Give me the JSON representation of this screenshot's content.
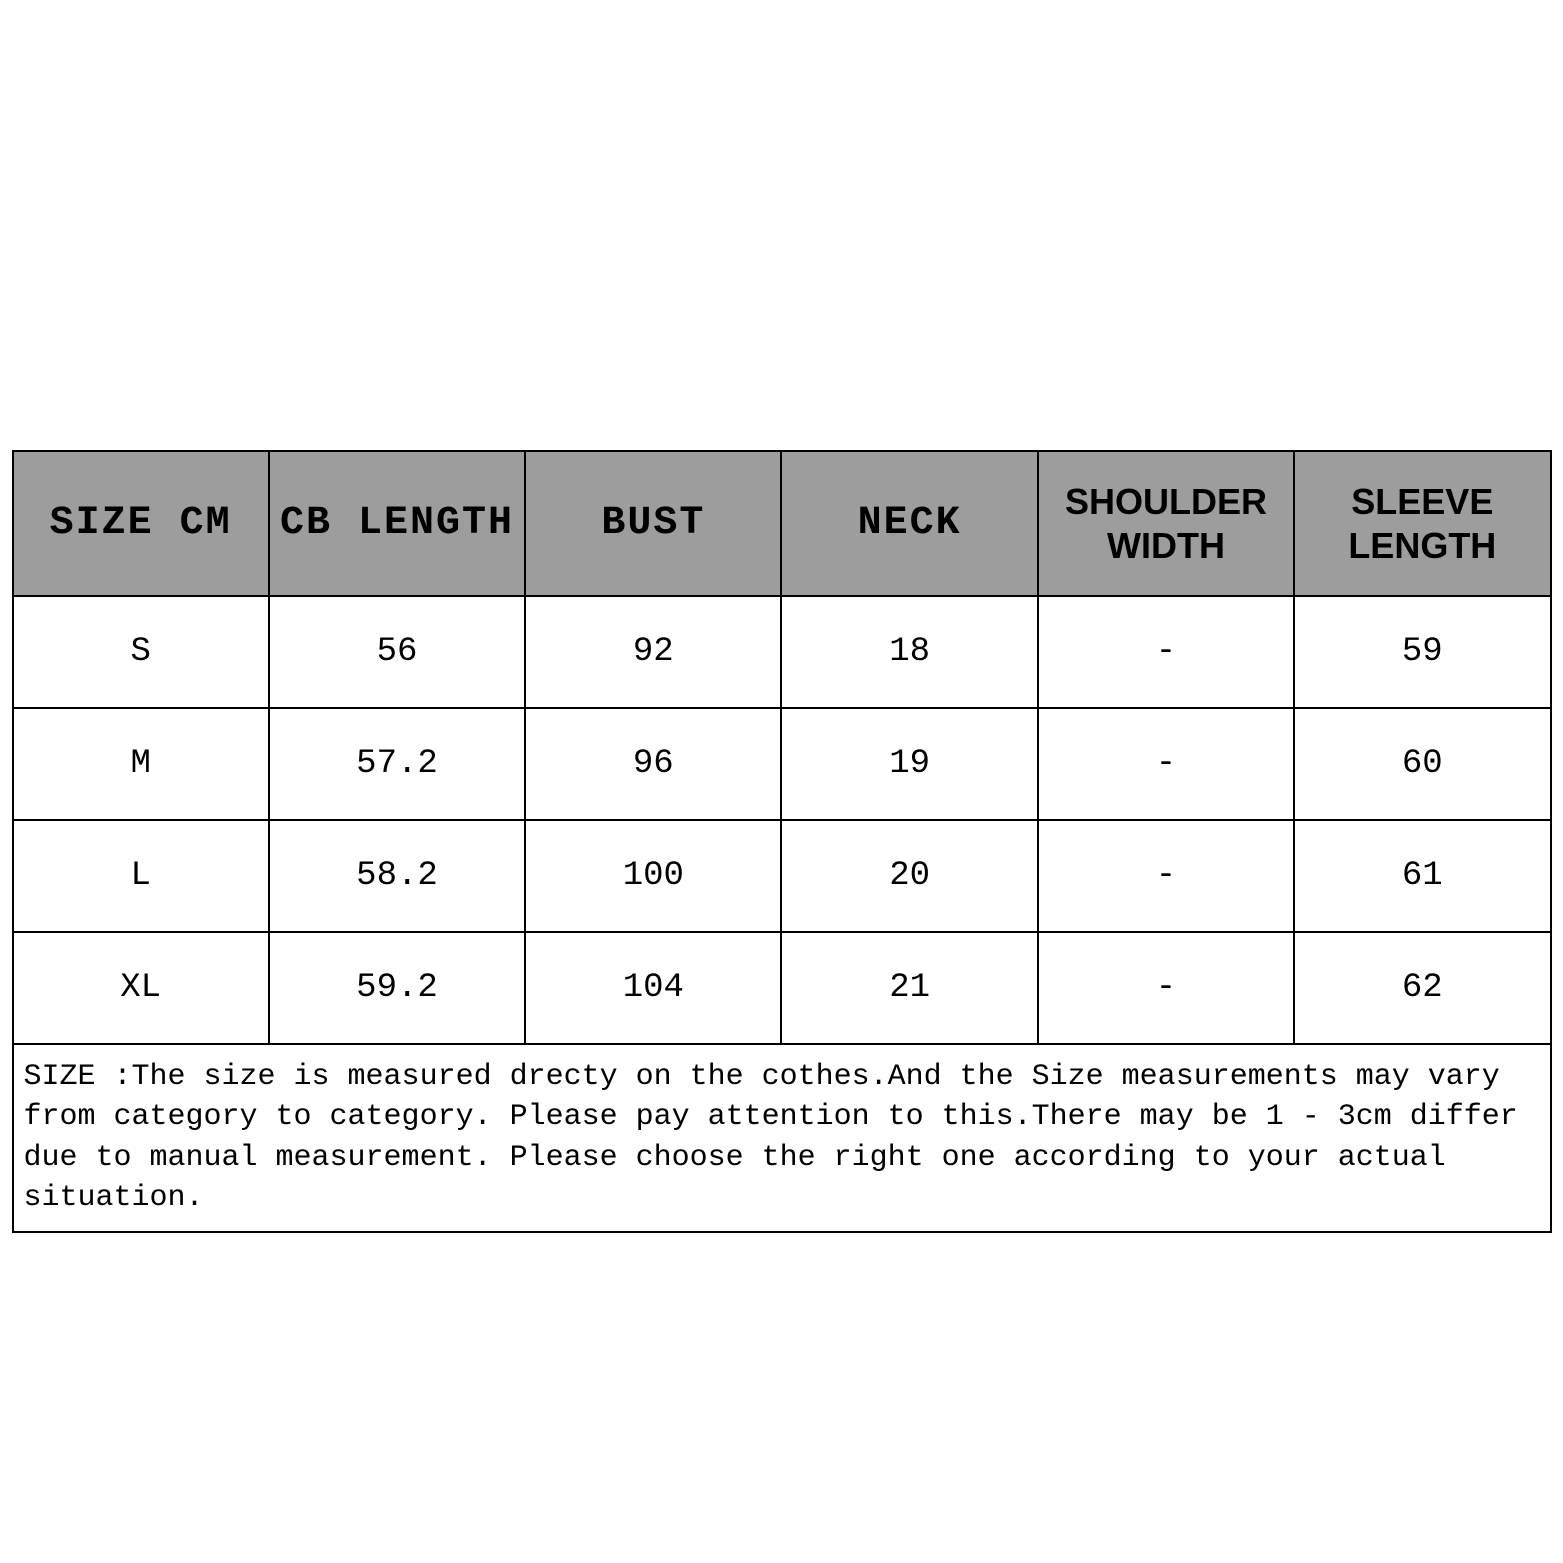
{
  "table": {
    "columns": [
      "SIZE CM",
      "CB LENGTH",
      "BUST",
      "NECK",
      "SHOULDER WIDTH",
      "SLEEVE LENGTH"
    ],
    "rows": [
      [
        "S",
        "56",
        "92",
        "18",
        "-",
        "59"
      ],
      [
        "M",
        "57.2",
        "96",
        "19",
        "-",
        "60"
      ],
      [
        "L",
        "58.2",
        "100",
        "20",
        "-",
        "61"
      ],
      [
        "XL",
        "59.2",
        "104",
        "21",
        "-",
        "62"
      ]
    ],
    "note": "SIZE :The size is measured drecty on the cothes.And the Size measurements may vary from category to category. Please pay attention to this.There may be 1 - 3cm differ due to manual measurement. Please choose the right one according to your actual situation.",
    "header_bg": "#9d9d9d",
    "border_color": "#000000",
    "cell_bg": "#ffffff",
    "header_fontsize": 36,
    "cell_fontsize": 34,
    "note_fontsize": 30
  }
}
